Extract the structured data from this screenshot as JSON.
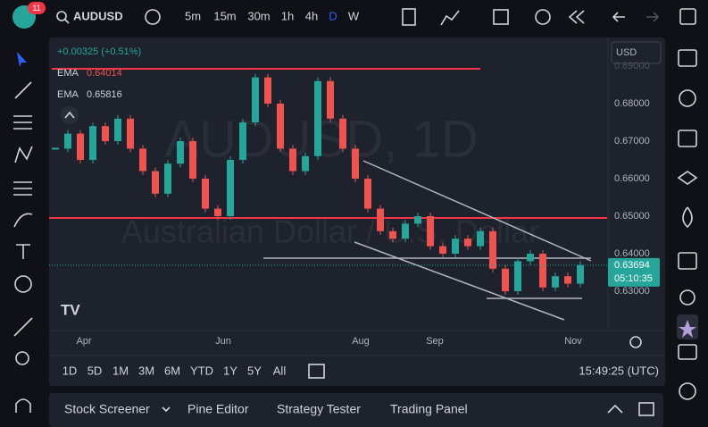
{
  "header": {
    "badge": "11",
    "symbol": "AUDUSD",
    "intervals": [
      "5m",
      "15m",
      "30m",
      "1h",
      "4h",
      "D",
      "W"
    ],
    "active_interval": "D"
  },
  "legend": {
    "change": "+0.00325 (+0.51%)",
    "indicators": [
      {
        "name": "EMA",
        "value": "0.64014",
        "color": "#ef5350"
      },
      {
        "name": "EMA",
        "value": "0.65816",
        "color": "#d1d4dc"
      }
    ]
  },
  "watermark": {
    "symbol": "AUDUSD, 1D",
    "description": "Australian Dollar / U.S. Dollar"
  },
  "price_axis": {
    "currency": "USD",
    "ticks": [
      {
        "value": 0.69,
        "label": "0.69000"
      },
      {
        "value": 0.68,
        "label": "0.68000"
      },
      {
        "value": 0.67,
        "label": "0.67000"
      },
      {
        "value": 0.66,
        "label": "0.66000"
      },
      {
        "value": 0.65,
        "label": "0.65000"
      },
      {
        "value": 0.64,
        "label": "0.64000"
      },
      {
        "value": 0.63,
        "label": "0.63000"
      }
    ],
    "last_price": {
      "value": 0.63694,
      "label": "0.63694"
    },
    "countdown": "05:10:35"
  },
  "price_history": {
    "closes": [
      0.668,
      0.672,
      0.665,
      0.674,
      0.67,
      0.676,
      0.668,
      0.662,
      0.656,
      0.664,
      0.67,
      0.66,
      0.652,
      0.65,
      0.665,
      0.675,
      0.687,
      0.68,
      0.668,
      0.662,
      0.666,
      0.686,
      0.676,
      0.668,
      0.66,
      0.652,
      0.646,
      0.644,
      0.648,
      0.65,
      0.642,
      0.64,
      0.644,
      0.642,
      0.646,
      0.636,
      0.63,
      0.638,
      0.64,
      0.631,
      0.634,
      0.632,
      0.637
    ]
  },
  "time_axis": {
    "labels": [
      "Apr",
      "Jun",
      "Aug",
      "Sep",
      "Nov"
    ]
  },
  "range_bar": {
    "ranges": [
      "1D",
      "5D",
      "1M",
      "3M",
      "6M",
      "YTD",
      "1Y",
      "5Y",
      "All"
    ],
    "clock": "15:49:25 (UTC)"
  },
  "bottom_panel": {
    "tabs": [
      "Stock Screener",
      "Pine Editor",
      "Strategy Tester",
      "Trading Panel"
    ]
  }
}
